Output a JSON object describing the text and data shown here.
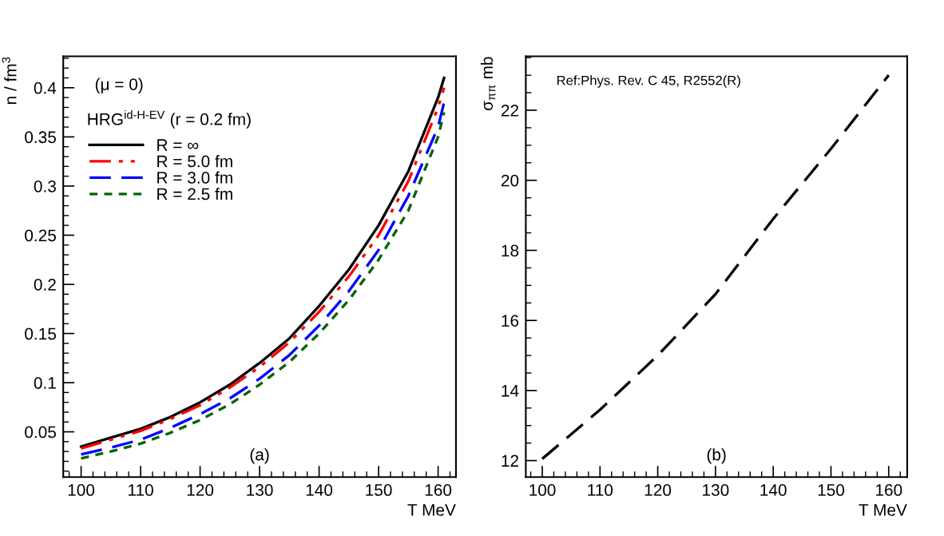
{
  "chart_data": [
    {
      "type": "line",
      "xlabel": "T MeV",
      "ylabel": "n / fm$^{3}$",
      "x": [
        100,
        105,
        110,
        115,
        120,
        125,
        130,
        135,
        140,
        145,
        150,
        155,
        160,
        161
      ],
      "series": [
        {
          "name": "R = ∞",
          "color": "#000000",
          "line_style": "solid",
          "values": [
            0.035,
            0.044,
            0.053,
            0.065,
            0.08,
            0.098,
            0.12,
            0.145,
            0.178,
            0.215,
            0.26,
            0.315,
            0.39,
            0.41
          ]
        },
        {
          "name": "R = 5.0 fm",
          "color": "#ff0000",
          "line_style": "dashdot",
          "values": [
            0.033,
            0.042,
            0.051,
            0.063,
            0.077,
            0.095,
            0.116,
            0.141,
            0.172,
            0.208,
            0.25,
            0.305,
            0.38,
            0.4
          ]
        },
        {
          "name": "R = 3.0 fm",
          "color": "#0000ff",
          "line_style": "dashed",
          "values": [
            0.027,
            0.034,
            0.042,
            0.054,
            0.068,
            0.084,
            0.104,
            0.128,
            0.158,
            0.193,
            0.235,
            0.29,
            0.36,
            0.385
          ]
        },
        {
          "name": "R = 2.5 fm",
          "color": "#006400",
          "line_style": "dotted",
          "values": [
            0.023,
            0.03,
            0.038,
            0.049,
            0.062,
            0.078,
            0.098,
            0.121,
            0.15,
            0.184,
            0.225,
            0.275,
            0.35,
            0.375
          ]
        }
      ],
      "xlim": [
        97,
        163
      ],
      "ylim": [
        0.004,
        0.432
      ],
      "xticks": [
        {
          "value": 98,
          "label": null
        },
        100,
        {
          "value": 102,
          "label": null
        },
        {
          "value": 104,
          "label": null
        },
        {
          "value": 106,
          "label": null
        },
        {
          "value": 108,
          "label": null
        },
        110,
        {
          "value": 112,
          "label": null
        },
        {
          "value": 114,
          "label": null
        },
        {
          "value": 116,
          "label": null
        },
        {
          "value": 118,
          "label": null
        },
        120,
        {
          "value": 122,
          "label": null
        },
        {
          "value": 124,
          "label": null
        },
        {
          "value": 126,
          "label": null
        },
        {
          "value": 128,
          "label": null
        },
        130,
        {
          "value": 132,
          "label": null
        },
        {
          "value": 134,
          "label": null
        },
        {
          "value": 136,
          "label": null
        },
        {
          "value": 138,
          "label": null
        },
        140,
        {
          "value": 142,
          "label": null
        },
        {
          "value": 144,
          "label": null
        },
        {
          "value": 146,
          "label": null
        },
        {
          "value": 148,
          "label": null
        },
        150,
        {
          "value": 152,
          "label": null
        },
        {
          "value": 154,
          "label": null
        },
        {
          "value": 156,
          "label": null
        },
        {
          "value": 158,
          "label": null
        },
        160,
        {
          "value": 162,
          "label": null
        }
      ],
      "yticks": [
        {
          "value": 0.01,
          "label": null
        },
        {
          "value": 0.02,
          "label": null
        },
        {
          "value": 0.03,
          "label": null
        },
        {
          "value": 0.04,
          "label": null
        },
        0.05,
        {
          "value": 0.06,
          "label": null
        },
        {
          "value": 0.07,
          "label": null
        },
        {
          "value": 0.08,
          "label": null
        },
        {
          "value": 0.09,
          "label": null
        },
        0.1,
        {
          "value": 0.11,
          "label": null
        },
        {
          "value": 0.12,
          "label": null
        },
        {
          "value": 0.13,
          "label": null
        },
        {
          "value": 0.14,
          "label": null
        },
        0.15,
        {
          "value": 0.16,
          "label": null
        },
        {
          "value": 0.17,
          "label": null
        },
        {
          "value": 0.18,
          "label": null
        },
        {
          "value": 0.19,
          "label": null
        },
        0.2,
        {
          "value": 0.21,
          "label": null
        },
        {
          "value": 0.22,
          "label": null
        },
        {
          "value": 0.23,
          "label": null
        },
        {
          "value": 0.24,
          "label": null
        },
        0.25,
        {
          "value": 0.26,
          "label": null
        },
        {
          "value": 0.27,
          "label": null
        },
        {
          "value": 0.28,
          "label": null
        },
        {
          "value": 0.29,
          "label": null
        },
        0.3,
        {
          "value": 0.31,
          "label": null
        },
        {
          "value": 0.32,
          "label": null
        },
        {
          "value": 0.33,
          "label": null
        },
        {
          "value": 0.34,
          "label": null
        },
        0.35,
        {
          "value": 0.36,
          "label": null
        },
        {
          "value": 0.37,
          "label": null
        },
        {
          "value": 0.38,
          "label": null
        },
        {
          "value": 0.39,
          "label": null
        },
        0.4,
        {
          "value": 0.41,
          "label": null
        },
        {
          "value": 0.42,
          "label": null
        },
        {
          "value": 0.43,
          "label": null
        }
      ],
      "legend": "top left",
      "annotations": [
        "(μ = 0)",
        "HRG$^{id-H-EV}$ (r = 0.2 fm)",
        "(a)"
      ]
    },
    {
      "type": "line",
      "xlabel": "T MeV",
      "ylabel": "σ$_{ππ}$ mb",
      "x": [
        100,
        110,
        120,
        130,
        140,
        150,
        160
      ],
      "series": [
        {
          "color": "#000000",
          "line_style": "dashed",
          "values": [
            12.05,
            13.45,
            15.0,
            16.75,
            18.9,
            20.9,
            23.0
          ]
        }
      ],
      "xlim": [
        97.15,
        163.2
      ],
      "ylim": [
        11.53,
        23.54
      ],
      "xticks": [
        {
          "value": 98,
          "label": null
        },
        100,
        {
          "value": 102,
          "label": null
        },
        {
          "value": 104,
          "label": null
        },
        {
          "value": 106,
          "label": null
        },
        {
          "value": 108,
          "label": null
        },
        110,
        {
          "value": 112,
          "label": null
        },
        {
          "value": 114,
          "label": null
        },
        {
          "value": 116,
          "label": null
        },
        {
          "value": 118,
          "label": null
        },
        120,
        {
          "value": 122,
          "label": null
        },
        {
          "value": 124,
          "label": null
        },
        {
          "value": 126,
          "label": null
        },
        {
          "value": 128,
          "label": null
        },
        130,
        {
          "value": 132,
          "label": null
        },
        {
          "value": 134,
          "label": null
        },
        {
          "value": 136,
          "label": null
        },
        {
          "value": 138,
          "label": null
        },
        140,
        {
          "value": 142,
          "label": null
        },
        {
          "value": 144,
          "label": null
        },
        {
          "value": 146,
          "label": null
        },
        {
          "value": 148,
          "label": null
        },
        150,
        {
          "value": 152,
          "label": null
        },
        {
          "value": 154,
          "label": null
        },
        {
          "value": 156,
          "label": null
        },
        {
          "value": 158,
          "label": null
        },
        160,
        {
          "value": 162,
          "label": null
        }
      ],
      "yticks": [
        12,
        {
          "value": 12.5,
          "label": null
        },
        {
          "value": 13,
          "label": null
        },
        {
          "value": 13.5,
          "label": null
        },
        14,
        {
          "value": 14.5,
          "label": null
        },
        {
          "value": 15,
          "label": null
        },
        {
          "value": 15.5,
          "label": null
        },
        16,
        {
          "value": 16.5,
          "label": null
        },
        {
          "value": 17,
          "label": null
        },
        {
          "value": 17.5,
          "label": null
        },
        18,
        {
          "value": 18.5,
          "label": null
        },
        {
          "value": 19,
          "label": null
        },
        {
          "value": 19.5,
          "label": null
        },
        20,
        {
          "value": 20.5,
          "label": null
        },
        {
          "value": 21,
          "label": null
        },
        {
          "value": 21.5,
          "label": null
        },
        22,
        {
          "value": 22.5,
          "label": null
        },
        {
          "value": 23,
          "label": null
        },
        {
          "value": 23.5,
          "label": null
        }
      ],
      "annotations": [
        "Ref:Phys. Rev. C 45, R2552(R)",
        "(b)"
      ]
    }
  ]
}
